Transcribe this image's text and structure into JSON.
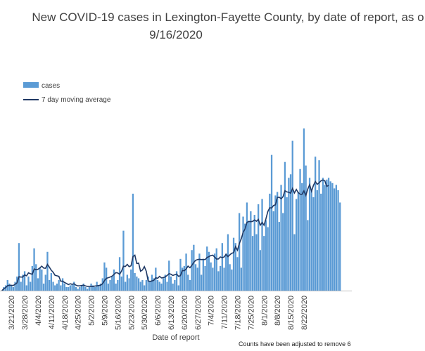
{
  "chart_data": {
    "type": "bar",
    "title_line1": "New COVID-19 cases in Lexington-Fayette County, by date of report, as o",
    "title_line2": "9/16/2020",
    "xlabel": "Date of report",
    "ylabel": "",
    "note": "Counts have been adjusted to remove 6",
    "legend": {
      "placement": "top-left",
      "entries": [
        {
          "label": "cases",
          "color": "#5b9bd5",
          "kind": "bar"
        },
        {
          "label": "7 day moving average",
          "color": "#1f3864",
          "kind": "line"
        }
      ]
    },
    "x_tick_labels": [
      "3/21/2020",
      "3/28/2020",
      "4/4/2020",
      "4/11/2020",
      "4/18/2020",
      "4/25/2020",
      "5/2/2020",
      "5/9/2020",
      "5/16/2020",
      "5/23/2020",
      "5/30/2020",
      "6/6/2020",
      "6/13/2020",
      "6/20/2020",
      "6/27/2020",
      "7/4/2020",
      "7/11/2020",
      "7/18/2020",
      "7/25/2020",
      "8/1/2020",
      "8/8/2020",
      "8/15/2020",
      "8/22/2020"
    ],
    "first_visible_date": "3/16/2020",
    "grid": false,
    "ylim": [
      0,
      105
    ],
    "series": [
      {
        "name": "cases",
        "values": [
          0,
          2,
          3,
          6,
          4,
          3,
          2,
          5,
          8,
          27,
          5,
          9,
          11,
          3,
          8,
          5,
          14,
          24,
          15,
          7,
          13,
          12,
          4,
          9,
          22,
          6,
          10,
          5,
          3,
          4,
          6,
          3,
          7,
          4,
          2,
          2,
          3,
          4,
          5,
          2,
          1,
          2,
          3,
          4,
          2,
          1,
          2,
          4,
          3,
          2,
          5,
          3,
          4,
          7,
          16,
          13,
          4,
          6,
          8,
          12,
          4,
          6,
          19,
          8,
          34,
          5,
          9,
          7,
          12,
          55,
          10,
          8,
          7,
          5,
          6,
          3,
          6,
          8,
          5,
          9,
          7,
          13,
          6,
          5,
          4,
          7,
          9,
          5,
          17,
          8,
          4,
          6,
          11,
          3,
          18,
          13,
          14,
          21,
          9,
          6,
          23,
          26,
          15,
          13,
          21,
          9,
          18,
          14,
          25,
          22,
          16,
          13,
          21,
          24,
          11,
          14,
          27,
          13,
          21,
          32,
          15,
          12,
          30,
          27,
          19,
          44,
          13,
          42,
          38,
          50,
          39,
          45,
          31,
          43,
          32,
          49,
          23,
          52,
          31,
          40,
          36,
          55,
          77,
          45,
          54,
          56,
          39,
          60,
          44,
          73,
          53,
          64,
          66,
          85,
          32,
          52,
          56,
          69,
          61,
          92,
          71,
          40,
          64,
          57,
          53,
          76,
          57,
          74,
          55,
          64,
          60,
          63,
          64,
          62,
          61,
          58,
          60,
          57,
          50
        ]
      },
      {
        "name": "7 day moving average",
        "values": [
          0.0,
          1.0,
          1.7,
          2.8,
          3.0,
          3.0,
          2.9,
          3.6,
          4.4,
          7.9,
          7.7,
          7.7,
          8.9,
          8.4,
          10.1,
          9.6,
          9.3,
          12.3,
          11.9,
          12.1,
          12.9,
          13.9,
          12.8,
          12.7,
          14.9,
          13.3,
          11.6,
          10.4,
          8.7,
          8.4,
          8.1,
          5.3,
          5.4,
          4.6,
          4.1,
          3.4,
          3.9,
          3.6,
          3.9,
          3.1,
          2.7,
          2.7,
          2.9,
          3.1,
          2.7,
          2.4,
          2.4,
          2.4,
          2.3,
          2.6,
          2.7,
          2.9,
          3.1,
          3.9,
          5.7,
          7.0,
          7.3,
          7.7,
          8.2,
          9.2,
          10.2,
          10.0,
          9.3,
          11.1,
          13.9,
          13.7,
          14.9,
          13.6,
          14.1,
          19.3,
          20.1,
          15.4,
          15.6,
          11.0,
          11.7,
          13.6,
          11.0,
          5.5,
          5.2,
          5.5,
          5.9,
          7.3,
          7.0,
          8.1,
          7.2,
          7.4,
          7.8,
          8.6,
          9.6,
          9.3,
          8.6,
          9.0,
          9.4,
          8.1,
          8.5,
          11.4,
          11.3,
          12.3,
          13.9,
          13.0,
          14.3,
          16.0,
          17.2,
          17.6,
          17.8,
          17.6,
          17.7,
          17.6,
          18.8,
          19.3,
          19.9,
          20.1,
          19.1,
          17.9,
          18.0,
          19.1,
          18.7,
          19.1,
          20.6,
          19.3,
          20.3,
          21.2,
          21.5,
          25.0,
          22.9,
          26.7,
          29.4,
          33.1,
          35.0,
          38.7,
          39.3,
          39.1,
          39.3,
          40.1,
          39.4,
          40.4,
          37.1,
          38.7,
          37.1,
          40.8,
          44.9,
          47.0,
          46.9,
          48.3,
          48.7,
          52.9,
          53.0,
          52.1,
          53.3,
          56.7,
          56.0,
          55.8,
          55.3,
          58.0,
          55.4,
          57.4,
          55.6,
          54.7,
          54.6,
          56.6,
          54.0,
          57.6,
          60.1,
          56.4,
          59.7,
          61.9,
          60.3,
          61.2,
          62.3,
          62.8,
          62.3,
          59.1,
          59.7
        ]
      }
    ]
  }
}
